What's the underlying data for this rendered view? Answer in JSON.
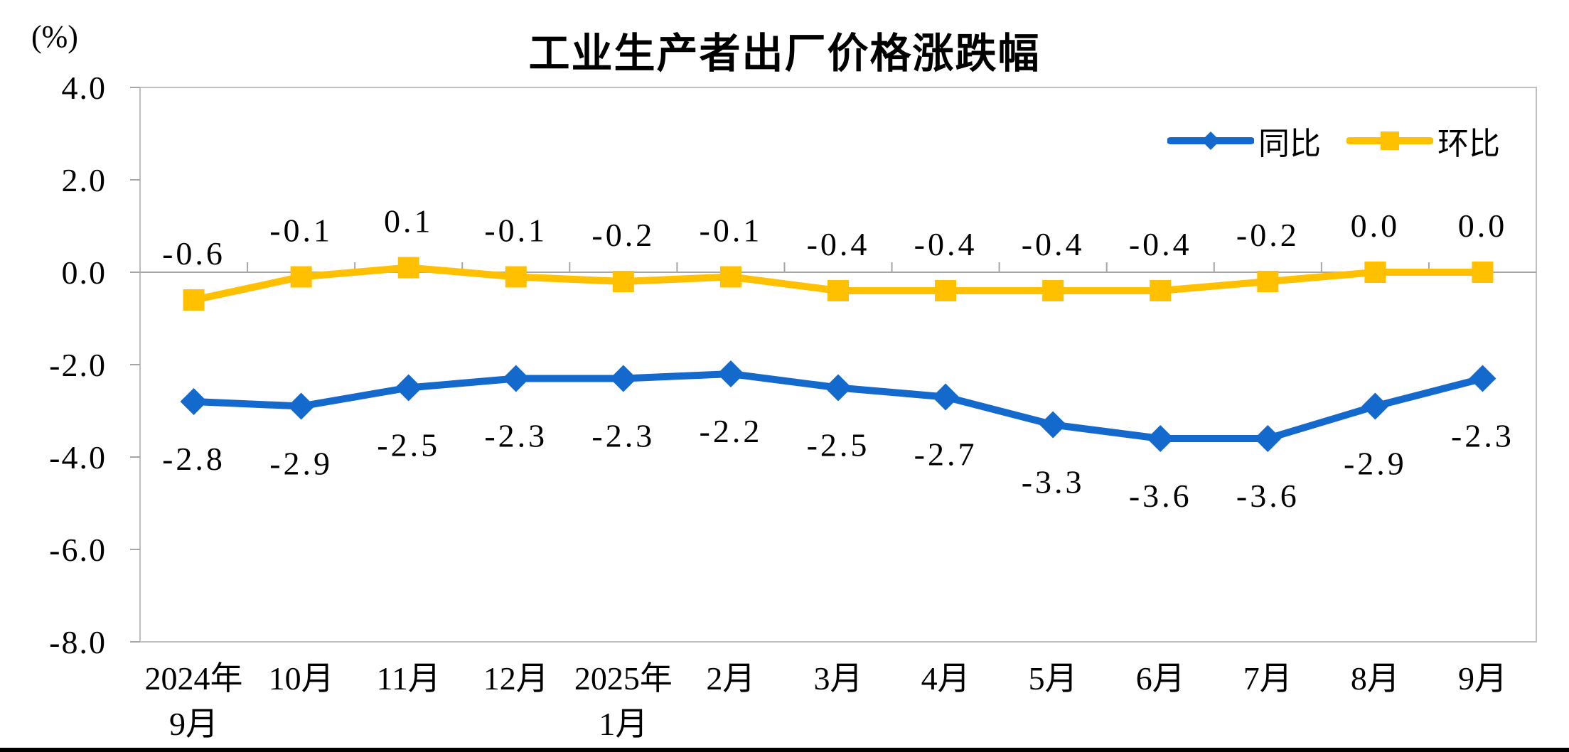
{
  "title": "工业生产者出厂价格涨跌幅",
  "y_axis_unit_label": "(%)",
  "colors": {
    "series_tongbi": "#1469CD",
    "series_huanbi": "#FFC000",
    "plot_border": "#BFBFBF",
    "axis_line": "#A6A6A6",
    "text": "#000000",
    "bottom_bar": "#000000"
  },
  "chart_data": {
    "type": "line",
    "title": "工业生产者出厂价格涨跌幅",
    "ylabel": "(%)",
    "grid": false,
    "legend_position": "top-right",
    "categories": [
      [
        "2024年",
        "9月"
      ],
      [
        "10月"
      ],
      [
        "11月"
      ],
      [
        "12月"
      ],
      [
        "2025年",
        "1月"
      ],
      [
        "2月"
      ],
      [
        "3月"
      ],
      [
        "4月"
      ],
      [
        "5月"
      ],
      [
        "6月"
      ],
      [
        "7月"
      ],
      [
        "8月"
      ],
      [
        "9月"
      ]
    ],
    "y_axis": {
      "min": -8.0,
      "max": 4.0,
      "step": 2.0,
      "tick_labels": [
        "4.0",
        "2.0",
        "0.0",
        "-2.0",
        "-4.0",
        "-6.0",
        "-8.0"
      ]
    },
    "series": [
      {
        "id": "tongbi",
        "name": "同比",
        "color": "#1469CD",
        "marker": "diamond",
        "label_position": "below",
        "values": [
          -2.8,
          -2.9,
          -2.5,
          -2.3,
          -2.3,
          -2.2,
          -2.5,
          -2.7,
          -3.3,
          -3.6,
          -3.6,
          -2.9,
          -2.3
        ],
        "labels": [
          "-2.8",
          "-2.9",
          "-2.5",
          "-2.3",
          "-2.3",
          "-2.2",
          "-2.5",
          "-2.7",
          "-3.3",
          "-3.6",
          "-3.6",
          "-2.9",
          "-2.3"
        ]
      },
      {
        "id": "huanbi",
        "name": "环比",
        "color": "#FFC000",
        "marker": "square",
        "label_position": "above",
        "values": [
          -0.6,
          -0.1,
          0.1,
          -0.1,
          -0.2,
          -0.1,
          -0.4,
          -0.4,
          -0.4,
          -0.4,
          -0.2,
          0.0,
          0.0
        ],
        "labels": [
          "-0.6",
          "-0.1",
          "0.1",
          "-0.1",
          "-0.2",
          "-0.1",
          "-0.4",
          "-0.4",
          "-0.4",
          "-0.4",
          "-0.2",
          "0.0",
          "0.0"
        ]
      }
    ]
  }
}
